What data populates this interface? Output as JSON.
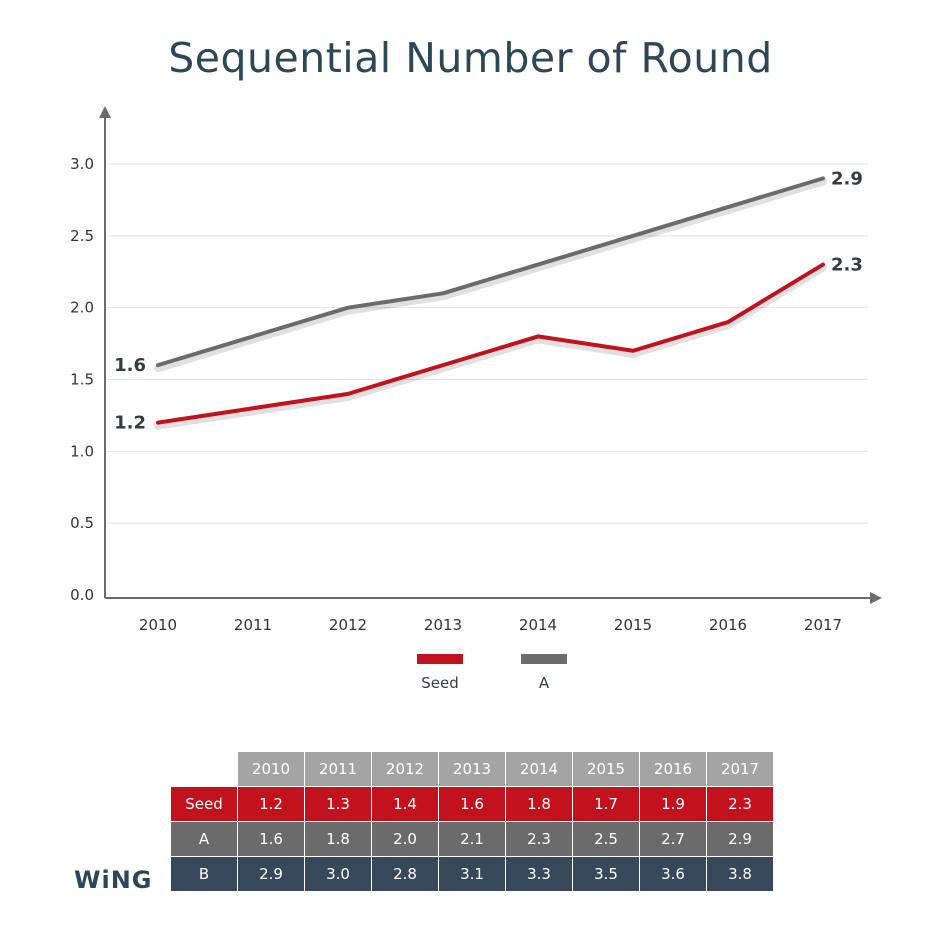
{
  "chart_data": {
    "type": "line",
    "title": "Sequential Number of Round",
    "xlabel": "",
    "ylabel": "",
    "x": [
      "2010",
      "2011",
      "2012",
      "2013",
      "2014",
      "2015",
      "2016",
      "2017"
    ],
    "ylim": [
      0,
      3.0
    ],
    "yticks": [
      "0.0",
      "0.5",
      "1.0",
      "1.5",
      "2.0",
      "2.5",
      "3.0"
    ],
    "grid": true,
    "legend_position": "bottom",
    "series": [
      {
        "name": "Seed",
        "color": "#c1121e",
        "values": [
          1.2,
          1.3,
          1.4,
          1.6,
          1.8,
          1.7,
          1.9,
          2.3
        ],
        "start_label": "1.2",
        "end_label": "2.3"
      },
      {
        "name": "A",
        "color": "#6b6b6b",
        "values": [
          1.6,
          1.8,
          2.0,
          2.1,
          2.3,
          2.5,
          2.7,
          2.9
        ],
        "start_label": "1.6",
        "end_label": "2.9"
      }
    ]
  },
  "table": {
    "header": [
      "2010",
      "2011",
      "2012",
      "2013",
      "2014",
      "2015",
      "2016",
      "2017"
    ],
    "rows": [
      {
        "label": "Seed",
        "cells": [
          "1.2",
          "1.3",
          "1.4",
          "1.6",
          "1.8",
          "1.7",
          "1.9",
          "2.3"
        ]
      },
      {
        "label": "A",
        "cells": [
          "1.6",
          "1.8",
          "2.0",
          "2.1",
          "2.3",
          "2.5",
          "2.7",
          "2.9"
        ]
      },
      {
        "label": "B",
        "cells": [
          "2.9",
          "3.0",
          "2.8",
          "3.1",
          "3.3",
          "3.5",
          "3.6",
          "3.8"
        ]
      }
    ]
  },
  "logo": {
    "text": "WiNG"
  }
}
